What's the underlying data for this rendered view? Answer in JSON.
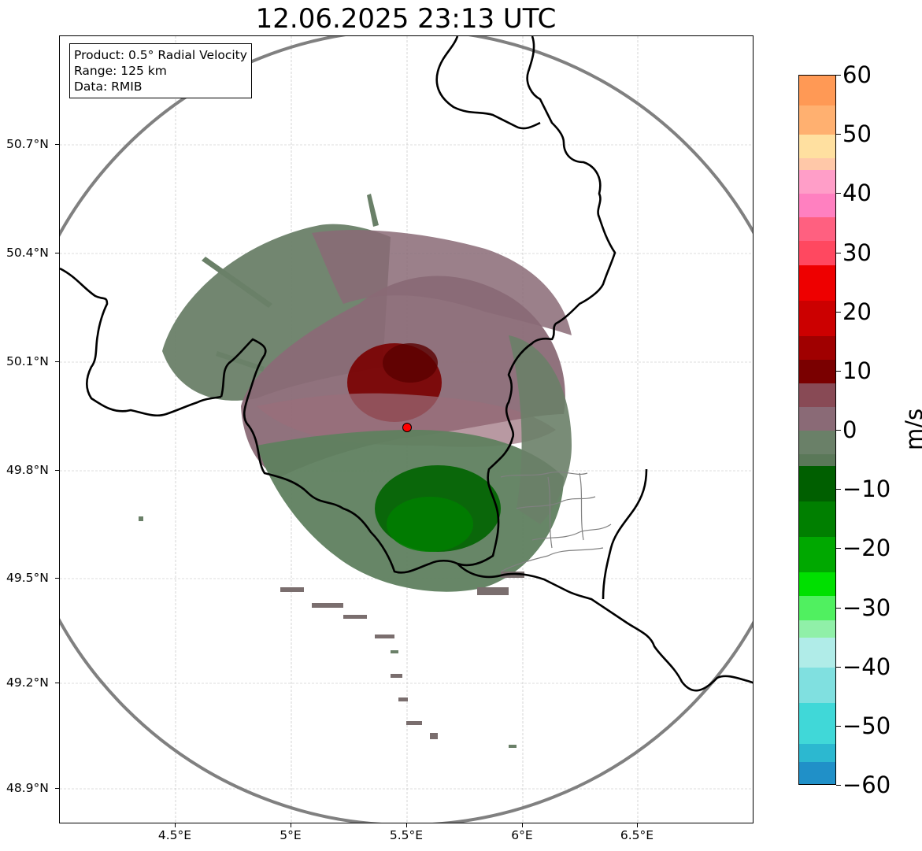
{
  "title": "12.06.2025 23:13 UTC",
  "info": {
    "product": "Product: 0.5° Radial Velocity",
    "range": "Range: 125 km",
    "source": "Data: RMIB"
  },
  "lat_labels": [
    "50.7°N",
    "50.4°N",
    "50.1°N",
    "49.8°N",
    "49.5°N",
    "49.2°N",
    "48.9°N"
  ],
  "lon_labels": [
    "4.5°E",
    "5°E",
    "5.5°E",
    "6°E",
    "6.5°E"
  ],
  "colorbar": {
    "unit": "m/s",
    "min": -60,
    "max": 60,
    "tick_labels": [
      "60",
      "50",
      "40",
      "30",
      "20",
      "10",
      "0",
      "−10",
      "−20",
      "−30",
      "−40",
      "−50",
      "−60"
    ],
    "segments": [
      {
        "from": 55,
        "to": 60,
        "color": "#ff9955"
      },
      {
        "from": 50,
        "to": 55,
        "color": "#ffb070"
      },
      {
        "from": 46,
        "to": 50,
        "color": "#ffe0a0"
      },
      {
        "from": 44,
        "to": 46,
        "color": "#ffc8a8"
      },
      {
        "from": 40,
        "to": 44,
        "color": "#ff9ec8"
      },
      {
        "from": 36,
        "to": 40,
        "color": "#ff80c0"
      },
      {
        "from": 32,
        "to": 36,
        "color": "#ff6080"
      },
      {
        "from": 28,
        "to": 32,
        "color": "#ff4860"
      },
      {
        "from": 22,
        "to": 28,
        "color": "#ee0000"
      },
      {
        "from": 16,
        "to": 22,
        "color": "#cc0000"
      },
      {
        "from": 12,
        "to": 16,
        "color": "#a00000"
      },
      {
        "from": 8,
        "to": 12,
        "color": "#7a0000"
      },
      {
        "from": 4,
        "to": 8,
        "color": "#884a55"
      },
      {
        "from": 0,
        "to": 4,
        "color": "#8a6a76"
      },
      {
        "from": -4,
        "to": 0,
        "color": "#6a8068"
      },
      {
        "from": -6,
        "to": -4,
        "color": "#5a7858"
      },
      {
        "from": -12,
        "to": -6,
        "color": "#005f00"
      },
      {
        "from": -18,
        "to": -12,
        "color": "#007f00"
      },
      {
        "from": -24,
        "to": -18,
        "color": "#00a800"
      },
      {
        "from": -28,
        "to": -24,
        "color": "#00e000"
      },
      {
        "from": -32,
        "to": -28,
        "color": "#50f060"
      },
      {
        "from": -35,
        "to": -32,
        "color": "#90f0a8"
      },
      {
        "from": -40,
        "to": -35,
        "color": "#b0ece8"
      },
      {
        "from": -46,
        "to": -40,
        "color": "#80e0e0"
      },
      {
        "from": -53,
        "to": -46,
        "color": "#40d8d8"
      },
      {
        "from": -56,
        "to": -53,
        "color": "#2cb8d0"
      },
      {
        "from": -60,
        "to": -56,
        "color": "#2090c8"
      }
    ]
  },
  "colors": {
    "range_ring": "#808080",
    "border": "#000000",
    "radar_site": "#ff0000",
    "neg_velocity": "#5f7f5f",
    "pos_velocity": "#8a6a76"
  }
}
